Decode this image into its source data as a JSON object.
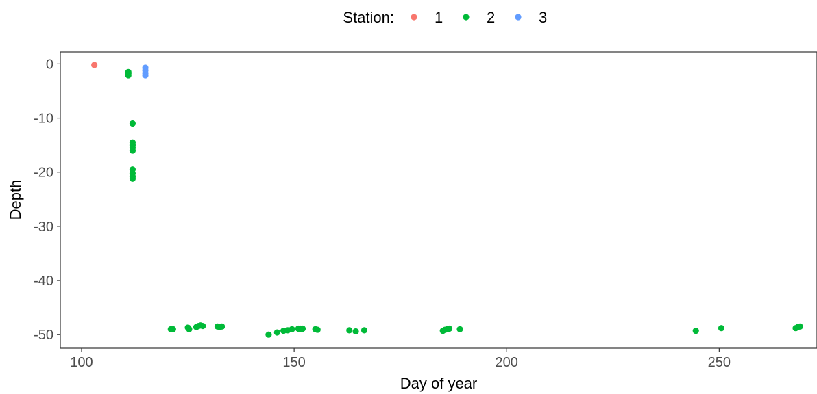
{
  "chart_data": {
    "type": "scatter",
    "title": "",
    "xlabel": "Day of year",
    "ylabel": "Depth",
    "xlim": [
      95,
      273
    ],
    "ylim": [
      -52.5,
      2.2
    ],
    "x_ticks": [
      100,
      150,
      200,
      250
    ],
    "y_ticks": [
      0,
      -10,
      -20,
      -30,
      -40,
      -50
    ],
    "grid": false,
    "legend": {
      "title": "Station:",
      "position": "top"
    },
    "series": [
      {
        "name": "1",
        "color": "#F8766D",
        "points": [
          [
            103,
            -0.2
          ]
        ]
      },
      {
        "name": "2",
        "color": "#00BA38",
        "points": [
          [
            111,
            -1.5
          ],
          [
            111,
            -1.8
          ],
          [
            111,
            -2.1
          ],
          [
            112,
            -11
          ],
          [
            112,
            -14.5
          ],
          [
            112,
            -15
          ],
          [
            112,
            -15.5
          ],
          [
            112,
            -16
          ],
          [
            112,
            -19.5
          ],
          [
            112,
            -20.2
          ],
          [
            112,
            -20.8
          ],
          [
            112,
            -21.2
          ],
          [
            121,
            -49
          ],
          [
            121.5,
            -49
          ],
          [
            125,
            -48.7
          ],
          [
            125.3,
            -49
          ],
          [
            127,
            -48.6
          ],
          [
            127.5,
            -48.4
          ],
          [
            128,
            -48.3
          ],
          [
            128.5,
            -48.4
          ],
          [
            132,
            -48.5
          ],
          [
            132.5,
            -48.6
          ],
          [
            133,
            -48.5
          ],
          [
            144,
            -50
          ],
          [
            146,
            -49.6
          ],
          [
            147.5,
            -49.3
          ],
          [
            148.5,
            -49.2
          ],
          [
            149.5,
            -49
          ],
          [
            151,
            -48.9
          ],
          [
            151.5,
            -48.9
          ],
          [
            152,
            -48.9
          ],
          [
            155,
            -49
          ],
          [
            155.5,
            -49.1
          ],
          [
            163,
            -49.2
          ],
          [
            164.5,
            -49.4
          ],
          [
            166.5,
            -49.2
          ],
          [
            185,
            -49.3
          ],
          [
            185.5,
            -49.1
          ],
          [
            186,
            -49
          ],
          [
            186.5,
            -48.9
          ],
          [
            189,
            -49
          ],
          [
            244.5,
            -49.3
          ],
          [
            250.5,
            -48.8
          ],
          [
            268,
            -48.8
          ],
          [
            268.5,
            -48.6
          ],
          [
            269,
            -48.5
          ]
        ]
      },
      {
        "name": "3",
        "color": "#619CFF",
        "points": [
          [
            115,
            -0.7
          ],
          [
            115,
            -1.2
          ],
          [
            115,
            -1.7
          ],
          [
            115,
            -2.1
          ]
        ]
      }
    ]
  }
}
